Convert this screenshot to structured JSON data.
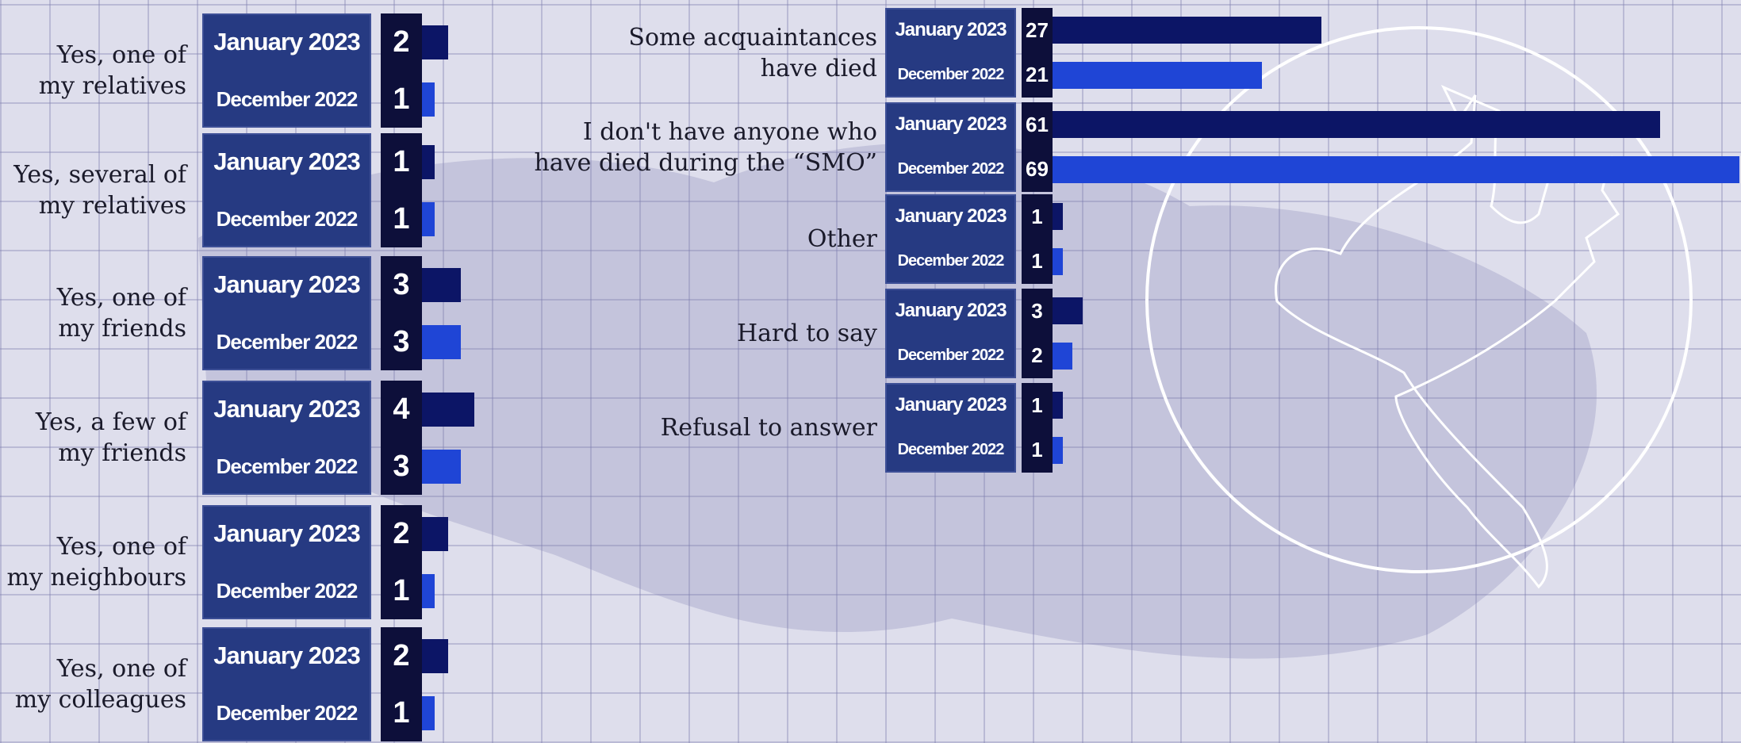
{
  "chart_data": [
    {
      "type": "bar",
      "orientation": "horizontal",
      "categories": [
        "Yes, one of\nmy relatives",
        "Yes, several of\nmy relatives",
        "Yes, one of\nmy friends",
        "Yes, a few of\nmy friends",
        "Yes, one of\nmy neighbours",
        "Yes, one of\nmy colleagues"
      ],
      "series": [
        {
          "name": "January 2023",
          "color": "#0c1566",
          "values": [
            2,
            1,
            3,
            4,
            2,
            2
          ]
        },
        {
          "name": "December 2022",
          "color": "#1f45d6",
          "values": [
            1,
            1,
            3,
            3,
            1,
            1
          ]
        }
      ]
    },
    {
      "type": "bar",
      "orientation": "horizontal",
      "categories": [
        "Some acquaintances\nhave died",
        "I don't have anyone who\nhave died during the “SMO”",
        "Other",
        "Hard to say",
        "Refusal to answer"
      ],
      "series": [
        {
          "name": "January 2023",
          "color": "#0c1566",
          "values": [
            27,
            61,
            1,
            3,
            1
          ]
        },
        {
          "name": "December 2022",
          "color": "#1f45d6",
          "values": [
            21,
            69,
            1,
            2,
            1
          ]
        }
      ]
    }
  ]
}
